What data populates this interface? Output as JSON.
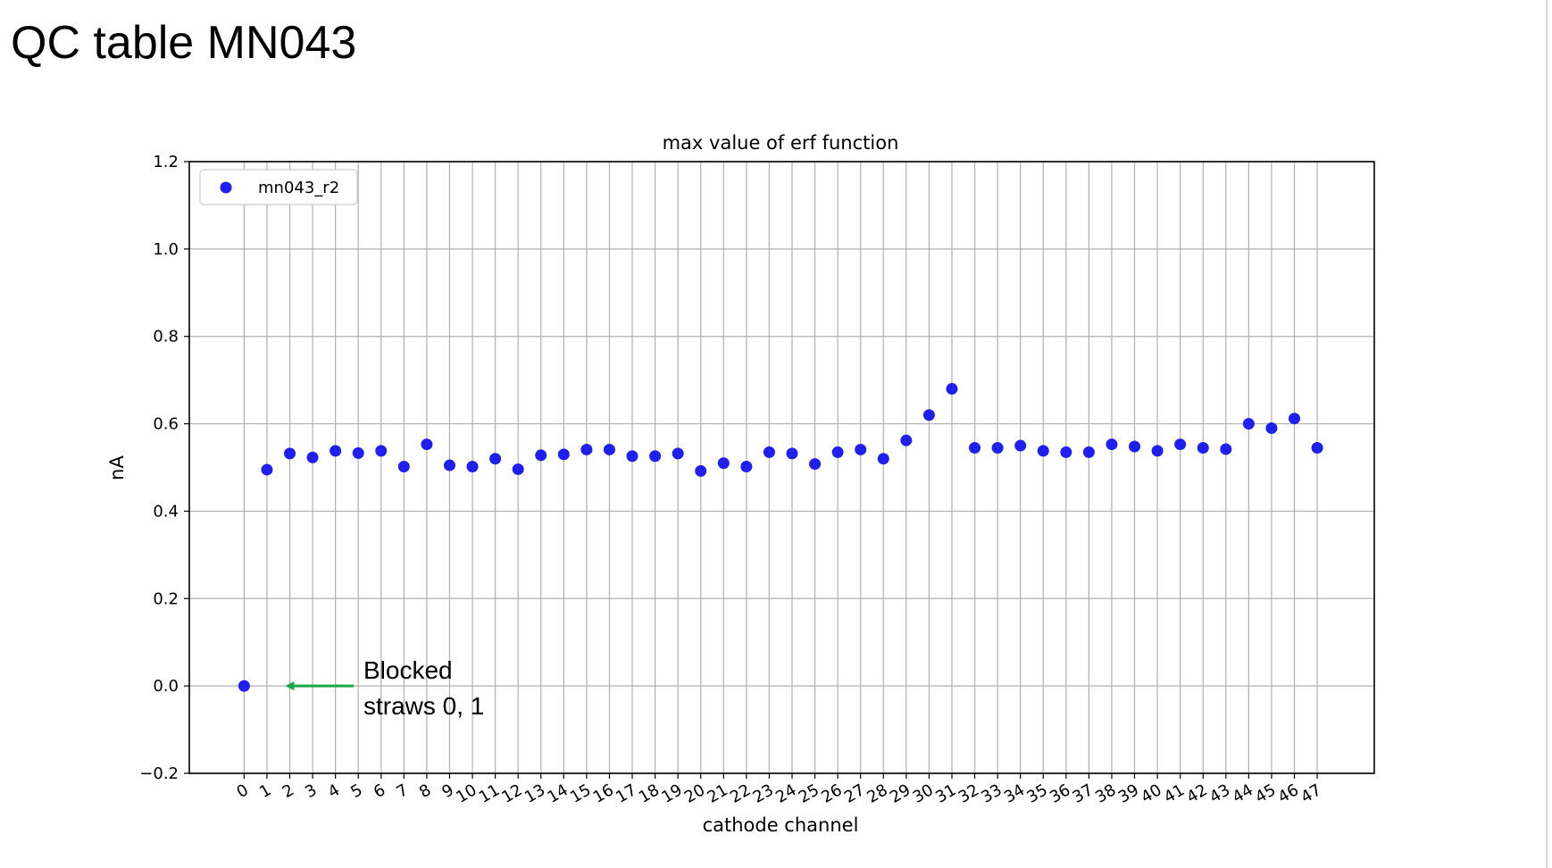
{
  "slide": {
    "title": "QC table MN043"
  },
  "annotation": {
    "line1": "Blocked",
    "line2": "straws 0, 1",
    "arrow_color": "#1aa64a",
    "points_to_x": 1.8,
    "points_to_y": 0.0,
    "tail_x": 4.8
  },
  "chart_data": {
    "type": "scatter",
    "title": "max value of erf function",
    "xlabel": "cathode channel",
    "ylabel": "nA",
    "xlim": [
      -2.4,
      49.5
    ],
    "ylim": [
      -0.2,
      1.2
    ],
    "x_ticks": [
      0,
      1,
      2,
      3,
      4,
      5,
      6,
      7,
      8,
      9,
      10,
      11,
      12,
      13,
      14,
      15,
      16,
      17,
      18,
      19,
      20,
      21,
      22,
      23,
      24,
      25,
      26,
      27,
      28,
      29,
      30,
      31,
      32,
      33,
      34,
      35,
      36,
      37,
      38,
      39,
      40,
      41,
      42,
      43,
      44,
      45,
      46,
      47
    ],
    "x_tick_labels": [
      "0",
      "1",
      "2",
      "3",
      "4",
      "5",
      "6",
      "7",
      "8",
      "9",
      "10",
      "11",
      "12",
      "13",
      "14",
      "15",
      "16",
      "17",
      "18",
      "19",
      "20",
      "21",
      "22",
      "23",
      "24",
      "25",
      "26",
      "27",
      "28",
      "29",
      "30",
      "31",
      "32",
      "33",
      "34",
      "35",
      "36",
      "37",
      "38",
      "39",
      "40",
      "41",
      "42",
      "43",
      "44",
      "45",
      "46",
      "47"
    ],
    "y_ticks": [
      -0.2,
      0.0,
      0.2,
      0.4,
      0.6,
      0.8,
      1.0,
      1.2
    ],
    "y_tick_labels": [
      "−0.2",
      "0.0",
      "0.2",
      "0.4",
      "0.6",
      "0.8",
      "1.0",
      "1.2"
    ],
    "grid": true,
    "legend_position": "top-left",
    "series": [
      {
        "name": "mn043_r2",
        "color": "#1f1ff0",
        "x": [
          0,
          1,
          2,
          3,
          4,
          5,
          6,
          7,
          8,
          9,
          10,
          11,
          12,
          13,
          14,
          15,
          16,
          17,
          18,
          19,
          20,
          21,
          22,
          23,
          24,
          25,
          26,
          27,
          28,
          29,
          30,
          31,
          32,
          33,
          34,
          35,
          36,
          37,
          38,
          39,
          40,
          41,
          42,
          43,
          44,
          45,
          46,
          47
        ],
        "y": [
          0.0,
          0.495,
          0.532,
          0.523,
          0.538,
          0.533,
          0.538,
          0.502,
          0.553,
          0.505,
          0.502,
          0.52,
          0.496,
          0.528,
          0.53,
          0.541,
          0.541,
          0.526,
          0.526,
          0.532,
          0.492,
          0.51,
          0.502,
          0.535,
          0.532,
          0.508,
          0.535,
          0.541,
          0.52,
          0.562,
          0.62,
          0.68,
          0.545,
          0.545,
          0.55,
          0.538,
          0.535,
          0.535,
          0.553,
          0.548,
          0.538,
          0.553,
          0.545,
          0.542,
          0.6,
          0.59,
          0.612,
          0.545
        ]
      }
    ]
  }
}
